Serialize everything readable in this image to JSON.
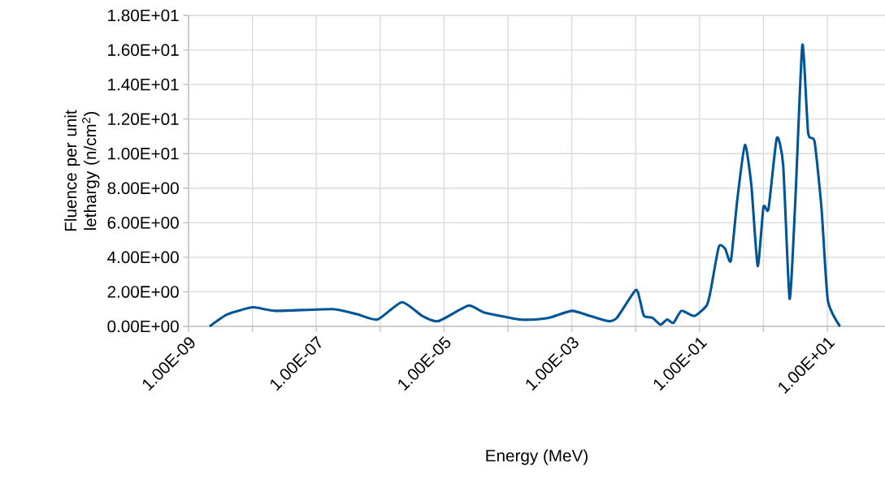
{
  "chart_data": {
    "type": "line",
    "xlabel": "Energy (MeV)",
    "ylabel": "Fluence per unit lethargy (n/cm$^{2}$)",
    "log": "x",
    "grid": true,
    "marker": "none",
    "line_style": "solid",
    "xlim": [
      1e-09,
      80
    ],
    "ylim": [
      0,
      18
    ],
    "xticks": [
      {
        "value": 1e-09,
        "label": "1.00E-09"
      },
      {
        "value": 1e-08,
        "label": null
      },
      {
        "value": 1e-07,
        "label": "1.00E-07"
      },
      {
        "value": 1e-06,
        "label": null
      },
      {
        "value": 1e-05,
        "label": "1.00E-05"
      },
      {
        "value": 0.0001,
        "label": null
      },
      {
        "value": 0.001,
        "label": "1.00E-03"
      },
      {
        "value": 0.01,
        "label": null
      },
      {
        "value": 0.1,
        "label": "1.00E-01"
      },
      {
        "value": 1,
        "label": null
      },
      {
        "value": 10,
        "label": "1.00E+01"
      }
    ],
    "yticks": [
      {
        "value": 0,
        "label": "0.00E+00"
      },
      {
        "value": 2,
        "label": "2.00E+00"
      },
      {
        "value": 4,
        "label": "4.00E+00"
      },
      {
        "value": 6,
        "label": "6.00E+00"
      },
      {
        "value": 8,
        "label": "8.00E+00"
      },
      {
        "value": 10,
        "label": "1.00E+01"
      },
      {
        "value": 12,
        "label": "1.20E+01"
      },
      {
        "value": 14,
        "label": "1.40E+01"
      },
      {
        "value": 16,
        "label": "1.60E+01"
      },
      {
        "value": 18,
        "label": "1.80E+01"
      }
    ],
    "x": [
      2.14e-09,
      4.07e-09,
      1.02e-08,
      2.34e-08,
      1.82e-07,
      4.37e-07,
      9.1e-07,
      2.19e-06,
      4.57e-06,
      8.1e-06,
      2.4e-05,
      4.27e-05,
      0.000151,
      0.000275,
      0.000447,
      0.001,
      0.00195,
      0.0038,
      0.0051,
      0.01,
      0.0117,
      0.0135,
      0.0182,
      0.0245,
      0.031,
      0.039,
      0.052,
      0.083,
      0.129,
      0.148,
      0.2,
      0.251,
      0.309,
      0.389,
      0.513,
      0.646,
      0.813,
      1.0,
      1.2,
      1.62,
      2.04,
      2.57,
      3.16,
      4.07,
      5.01,
      6.31,
      8.13,
      10.2,
      15.8
    ],
    "series": [
      {
        "color": "#005596",
        "values": [
          0.0,
          0.7,
          1.1,
          0.9,
          1.0,
          0.7,
          0.4,
          1.4,
          0.6,
          0.3,
          1.2,
          0.8,
          0.4,
          0.4,
          0.5,
          0.9,
          0.6,
          0.3,
          0.5,
          2.1,
          1.5,
          0.6,
          0.5,
          0.1,
          0.4,
          0.2,
          0.9,
          0.6,
          1.2,
          2.0,
          4.6,
          4.5,
          3.8,
          7.3,
          10.5,
          8.2,
          3.5,
          6.9,
          6.8,
          10.9,
          9.3,
          1.6,
          7.3,
          16.3,
          11.2,
          10.7,
          6.8,
          1.5,
          0.0
        ]
      }
    ]
  }
}
